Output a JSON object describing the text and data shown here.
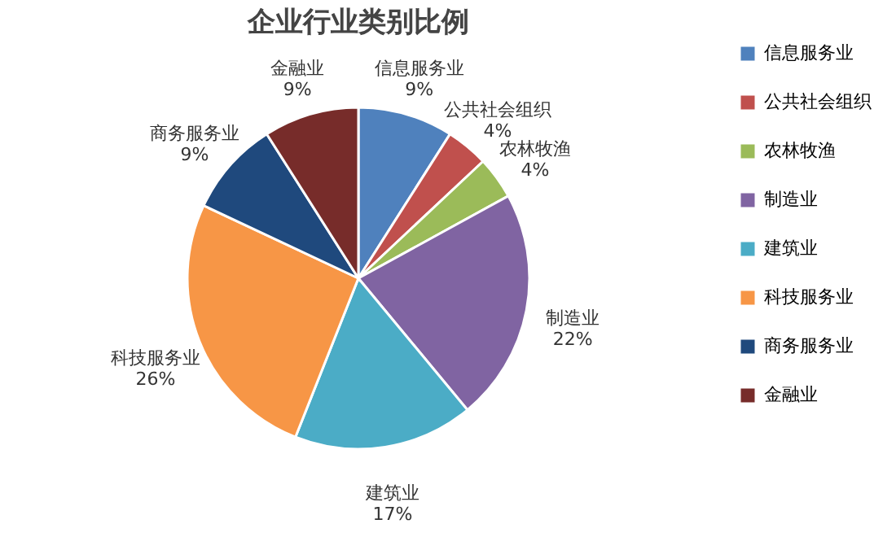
{
  "chart_data": {
    "type": "pie",
    "title": "企业行业类别比例",
    "categories": [
      "信息服务业",
      "公共社会组织",
      "农林牧渔",
      "制造业",
      "建筑业",
      "科技服务业",
      "商务服务业",
      "金融业"
    ],
    "values": [
      9,
      4,
      4,
      22,
      17,
      26,
      9,
      9
    ],
    "value_labels": [
      "9%",
      "4%",
      "4%",
      "22%",
      "17%",
      "26%",
      "9%",
      "9%"
    ],
    "colors": [
      "#4f81bd",
      "#c0504d",
      "#9bbb59",
      "#8064a2",
      "#4bacc6",
      "#f79646",
      "#1f497d",
      "#772c2a"
    ],
    "legend": "right"
  }
}
